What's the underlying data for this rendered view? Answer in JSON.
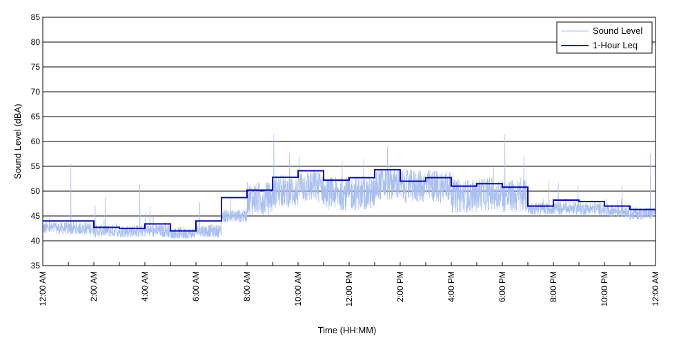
{
  "chart_data": {
    "type": "line",
    "title": "",
    "xlabel": "Time (HH:MM)",
    "ylabel": "Sound Level (dBA)",
    "ylim": [
      35,
      85
    ],
    "yticks": [
      35,
      40,
      45,
      50,
      55,
      60,
      65,
      70,
      75,
      80,
      85
    ],
    "xlim_hours": [
      0,
      24
    ],
    "xtick_labels": [
      "12:00 AM",
      "2:00 AM",
      "4:00 AM",
      "6:00 AM",
      "8:00 AM",
      "10:00 AM",
      "12:00 PM",
      "2:00 PM",
      "4:00 PM",
      "6:00 PM",
      "8:00 PM",
      "10:00 PM",
      "12:00 AM"
    ],
    "grid": "horizontal",
    "legend_position": "top-right",
    "colors": {
      "sound_level": "#a9bff0",
      "leq": "#0000cc",
      "grid": "#000000"
    },
    "series": [
      {
        "name": "Sound Level",
        "kind": "noisy-line",
        "baseline_by_hour": [
          42.5,
          42.5,
          42,
          42,
          42,
          41.5,
          42,
          45,
          48.5,
          50,
          51,
          49.5,
          49.5,
          51.5,
          51,
          51,
          49,
          49.5,
          49,
          46.5,
          46.5,
          46.5,
          46,
          45.5
        ],
        "notable_peaks": [
          {
            "hour": 1.1,
            "value": 55.5
          },
          {
            "hour": 3.8,
            "value": 51.5
          },
          {
            "hour": 9.05,
            "value": 61.5
          },
          {
            "hour": 13.5,
            "value": 59
          },
          {
            "hour": 18.1,
            "value": 61.5
          },
          {
            "hour": 23.8,
            "value": 57.5
          }
        ]
      },
      {
        "name": "1-Hour Leq",
        "kind": "step",
        "values": [
          44,
          44,
          42.7,
          42.5,
          43.4,
          42,
          44,
          48.7,
          50.2,
          52.8,
          54.1,
          52.2,
          52.7,
          54.3,
          52,
          52.7,
          51,
          51.5,
          50.8,
          47,
          48.2,
          47.9,
          47,
          46.3
        ]
      }
    ]
  }
}
